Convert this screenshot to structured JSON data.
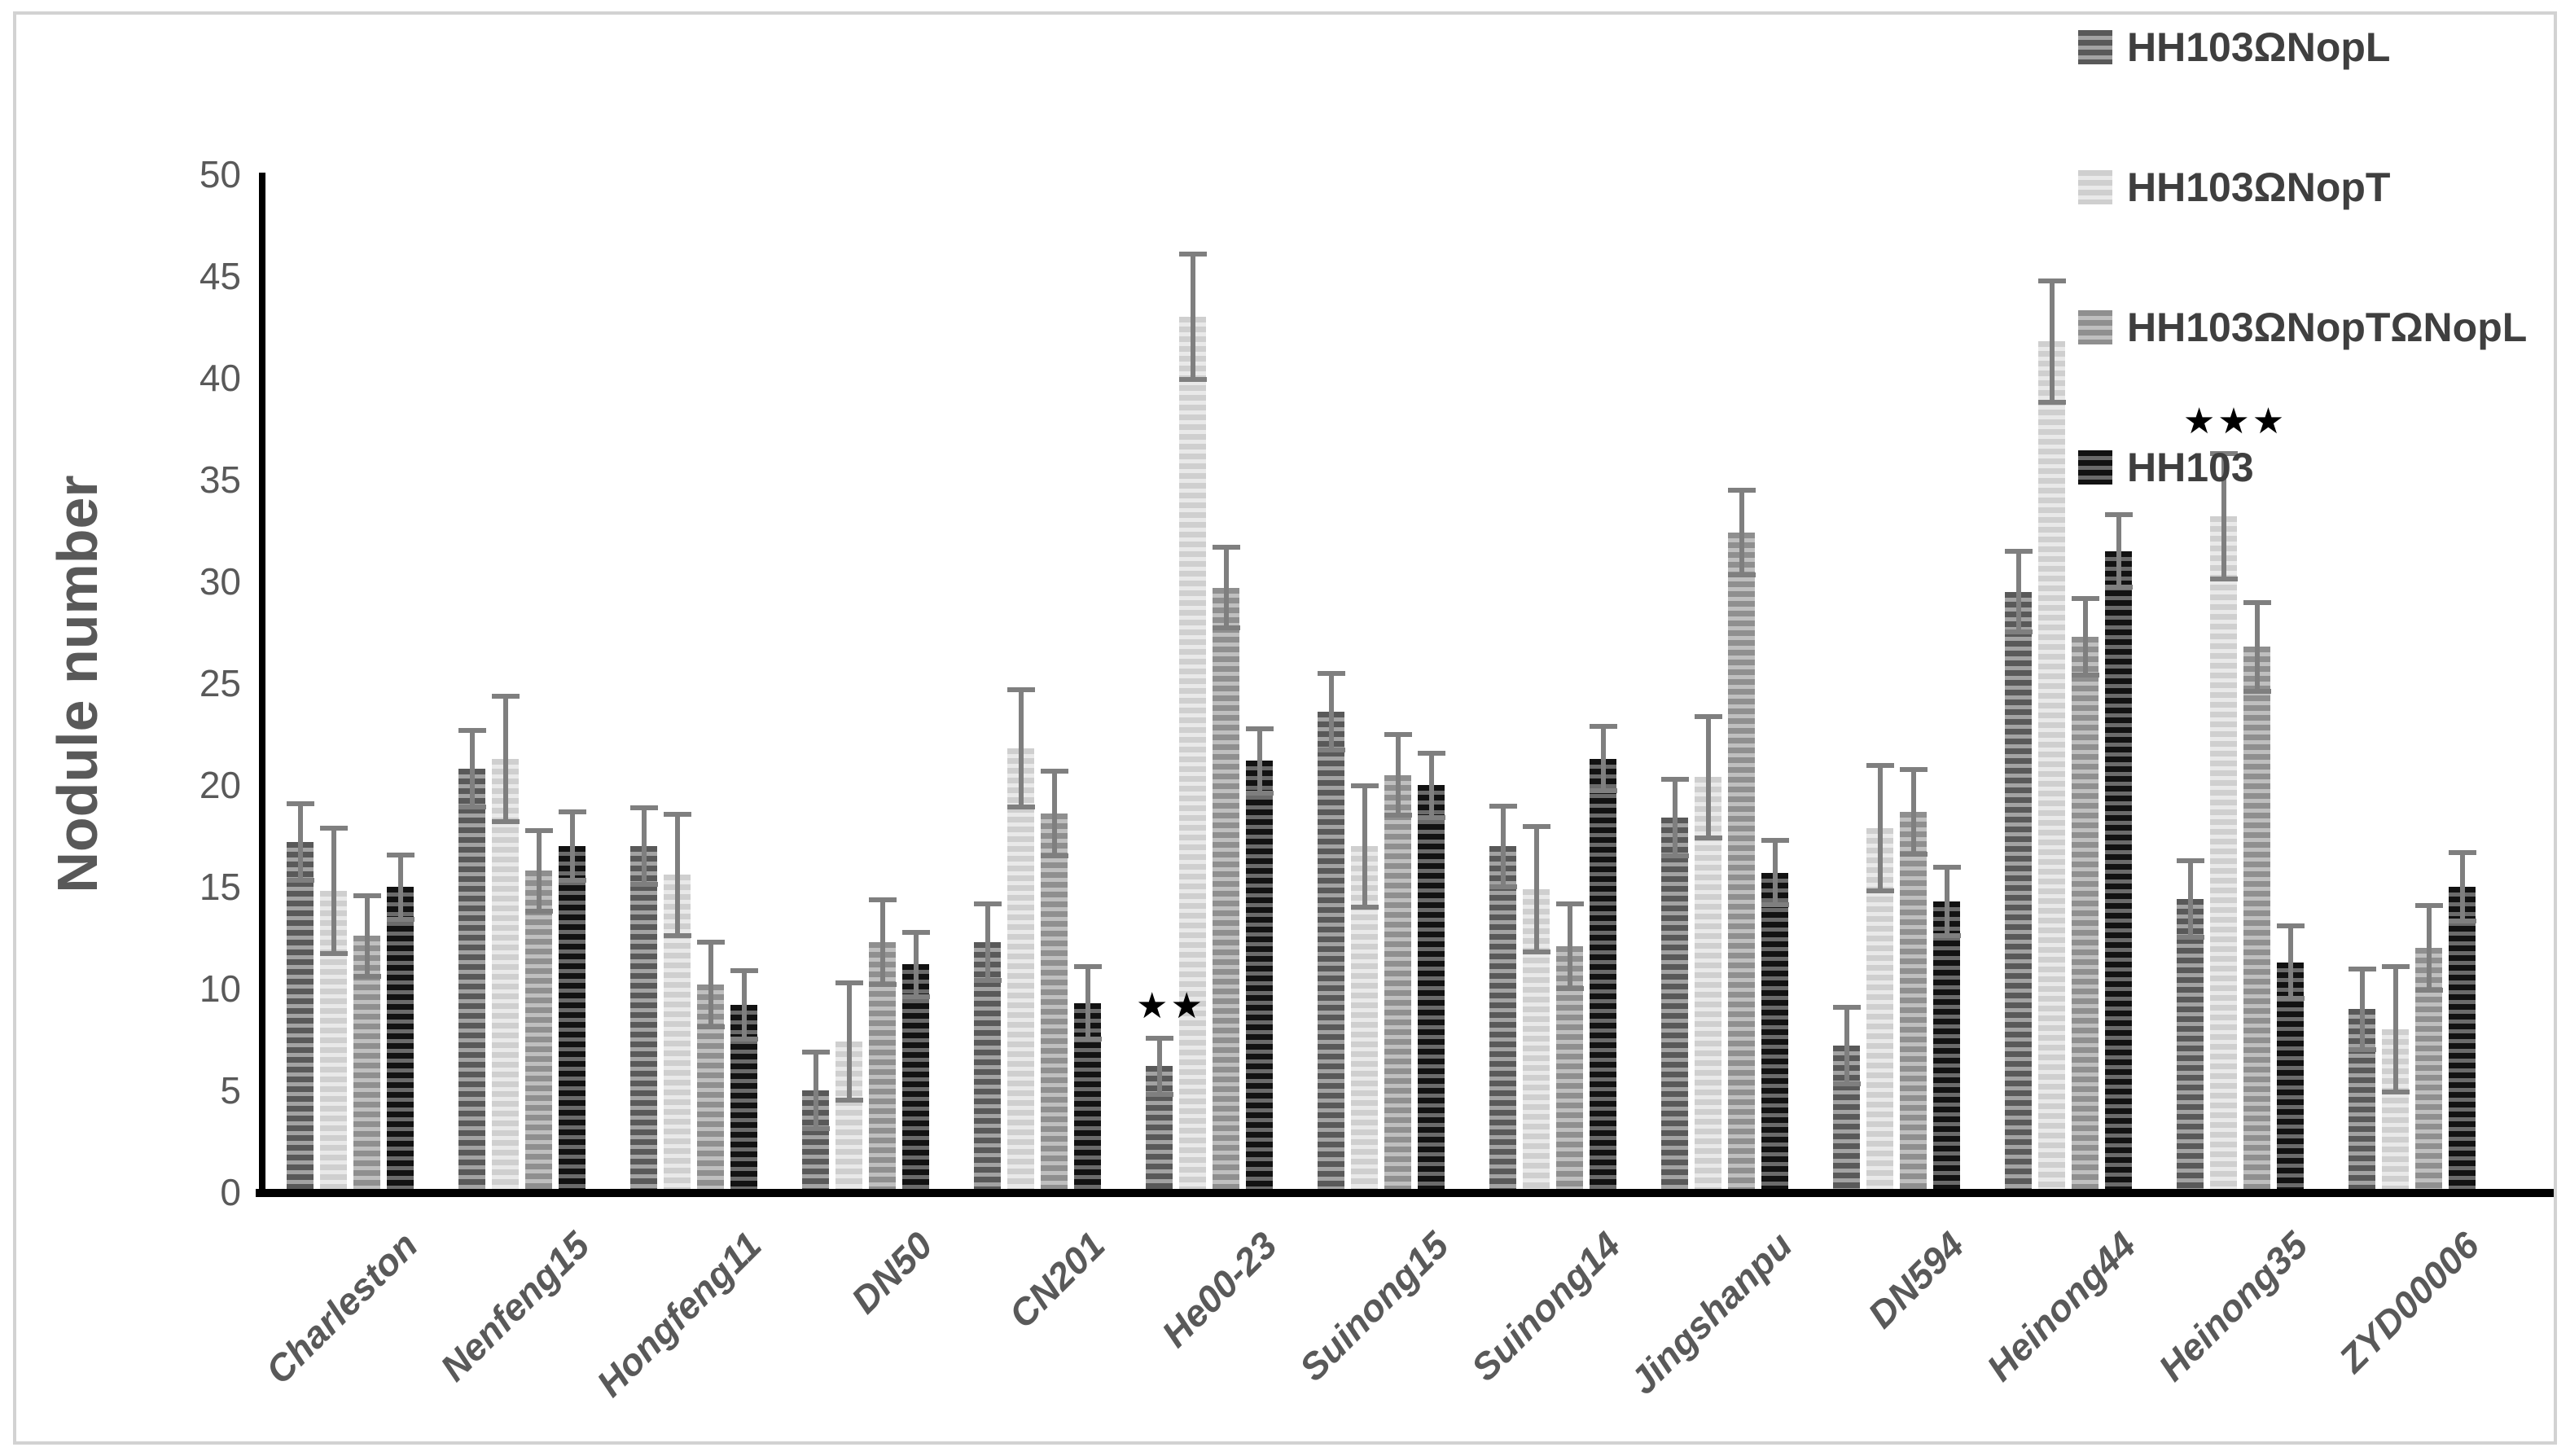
{
  "figure": {
    "border_color": "#d2d2d2",
    "background": "#ffffff"
  },
  "chart_data": {
    "type": "bar",
    "title": "",
    "xlabel": "",
    "ylabel": "Nodule number",
    "ylim": [
      0,
      50
    ],
    "ytick_step": 5,
    "grid": false,
    "legend_position": "top-right",
    "error_bar_color": "#7f7f7f",
    "axis_color": "#000000",
    "tick_label_color": "#595959",
    "categories": [
      "Charleston",
      "Nenfeng15",
      "Hongfeng11",
      "DN50",
      "CN201",
      "He00-23",
      "Suinong15",
      "Suinong14",
      "Jingshanpu",
      "DN594",
      "Heinong44",
      "Heinong35",
      "ZYD00006"
    ],
    "series": [
      {
        "name": "HH103ΩNopL",
        "stripe_dark": "#595959",
        "stripe_light": "#a3a3a3",
        "values": [
          17.2,
          20.8,
          17.0,
          5.0,
          12.3,
          6.2,
          23.6,
          17.0,
          18.4,
          7.2,
          29.5,
          14.4,
          9.0
        ],
        "errors": [
          2.0,
          2.0,
          2.0,
          2.0,
          2.0,
          1.5,
          2.0,
          2.1,
          2.0,
          2.0,
          2.1,
          2.0,
          2.1
        ]
      },
      {
        "name": "HH103ΩNopT",
        "stripe_dark": "#cfcfcf",
        "stripe_light": "#e9e9e9",
        "values": [
          14.8,
          21.3,
          15.6,
          7.4,
          21.8,
          43.0,
          17.0,
          14.9,
          20.4,
          17.9,
          41.8,
          33.2,
          8.0
        ],
        "errors": [
          3.2,
          3.2,
          3.1,
          3.0,
          3.0,
          3.2,
          3.1,
          3.2,
          3.1,
          3.2,
          3.1,
          3.2,
          3.2
        ]
      },
      {
        "name": "HH103ΩNopTΩNopL",
        "stripe_dark": "#8f8f8f",
        "stripe_light": "#bfbfbf",
        "values": [
          12.6,
          15.8,
          10.2,
          12.3,
          18.6,
          29.7,
          20.5,
          12.1,
          32.4,
          18.7,
          27.3,
          26.8,
          12.0
        ],
        "errors": [
          2.1,
          2.1,
          2.2,
          2.2,
          2.2,
          2.1,
          2.1,
          2.2,
          2.2,
          2.2,
          2.0,
          2.3,
          2.2
        ]
      },
      {
        "name": "HH103",
        "stripe_dark": "#121212",
        "stripe_light": "#6b6b6b",
        "values": [
          15.0,
          17.0,
          9.2,
          11.2,
          9.3,
          21.2,
          20.0,
          21.3,
          15.7,
          14.3,
          31.5,
          11.3,
          15.0
        ],
        "errors": [
          1.7,
          1.8,
          1.8,
          1.7,
          1.9,
          1.7,
          1.7,
          1.7,
          1.7,
          1.8,
          1.9,
          1.9,
          1.8
        ]
      }
    ],
    "annotations": [
      {
        "text": "★★",
        "category_index": 5,
        "series_index": 0
      },
      {
        "text": "★★★",
        "category_index": 11,
        "series_index": 1
      }
    ]
  }
}
